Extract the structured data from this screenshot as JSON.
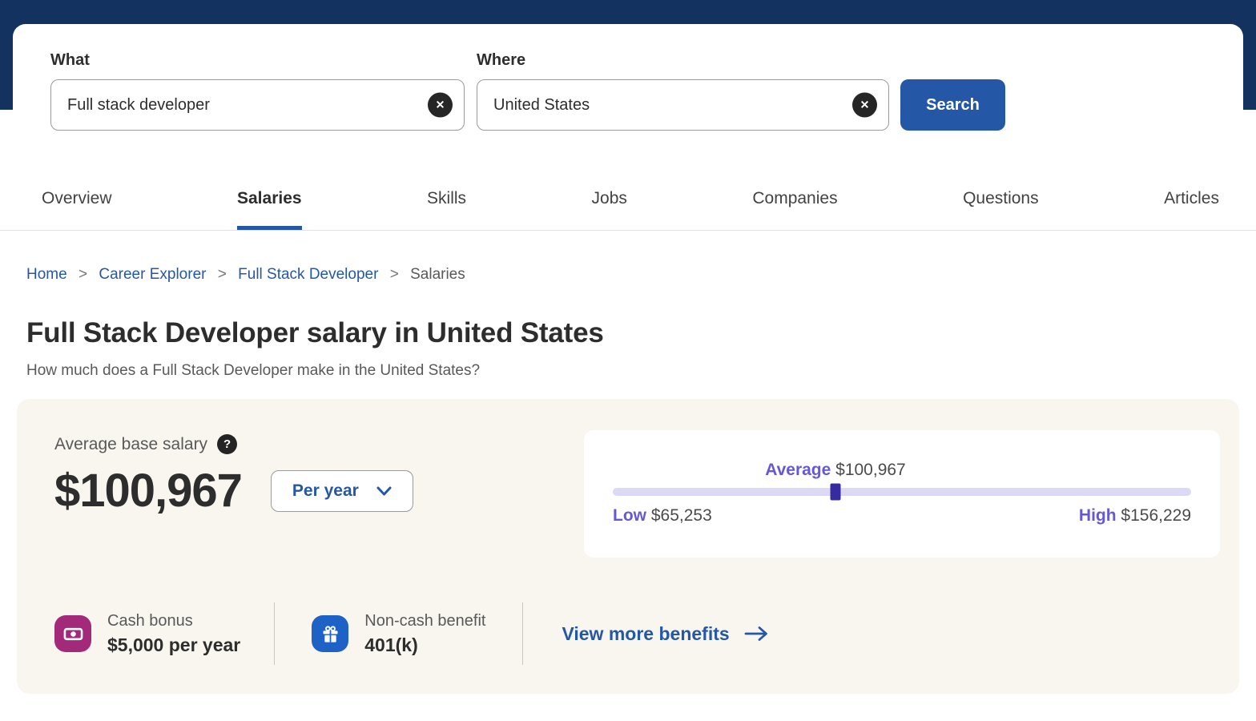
{
  "search": {
    "what_label": "What",
    "what_value": "Full stack developer",
    "where_label": "Where",
    "where_value": "United States",
    "search_button": "Search"
  },
  "tabs": [
    {
      "label": "Overview"
    },
    {
      "label": "Salaries",
      "active": true
    },
    {
      "label": "Skills"
    },
    {
      "label": "Jobs"
    },
    {
      "label": "Companies"
    },
    {
      "label": "Questions"
    },
    {
      "label": "Articles"
    }
  ],
  "breadcrumb": {
    "separator": ">",
    "items": [
      {
        "label": "Home"
      },
      {
        "label": "Career Explorer"
      },
      {
        "label": "Full Stack Developer"
      },
      {
        "label": "Salaries"
      }
    ]
  },
  "page": {
    "title": "Full Stack Developer salary in United States",
    "subtitle": "How much does a Full Stack Developer make in the United States?"
  },
  "salary_card": {
    "average_label": "Average base salary",
    "amount": "$100,967",
    "period_selector": "Per year",
    "range": {
      "average_label": "Average",
      "average_value": "$100,967",
      "low_label": "Low",
      "low_value": "$65,253",
      "high_label": "High",
      "high_value": "$156,229",
      "marker_percent": 38.5
    },
    "benefits": [
      {
        "label": "Cash bonus",
        "value": "$5,000 per year",
        "icon": "cash-icon"
      },
      {
        "label": "Non-cash benefit",
        "value": "401(k)",
        "icon": "gift-icon"
      }
    ],
    "view_more_label": "View more benefits"
  },
  "icons": {
    "clear": "✕",
    "help": "?"
  },
  "colors": {
    "navy_header": "#14325f",
    "brand_blue": "#2557a7",
    "range_purple": "#6558d6",
    "range_track": "#dcd9f6",
    "range_marker": "#352ca0",
    "cash_icon_bg": "#a32a7a",
    "gift_icon_bg": "#1f62c6",
    "card_background": "#f9f6f0"
  }
}
